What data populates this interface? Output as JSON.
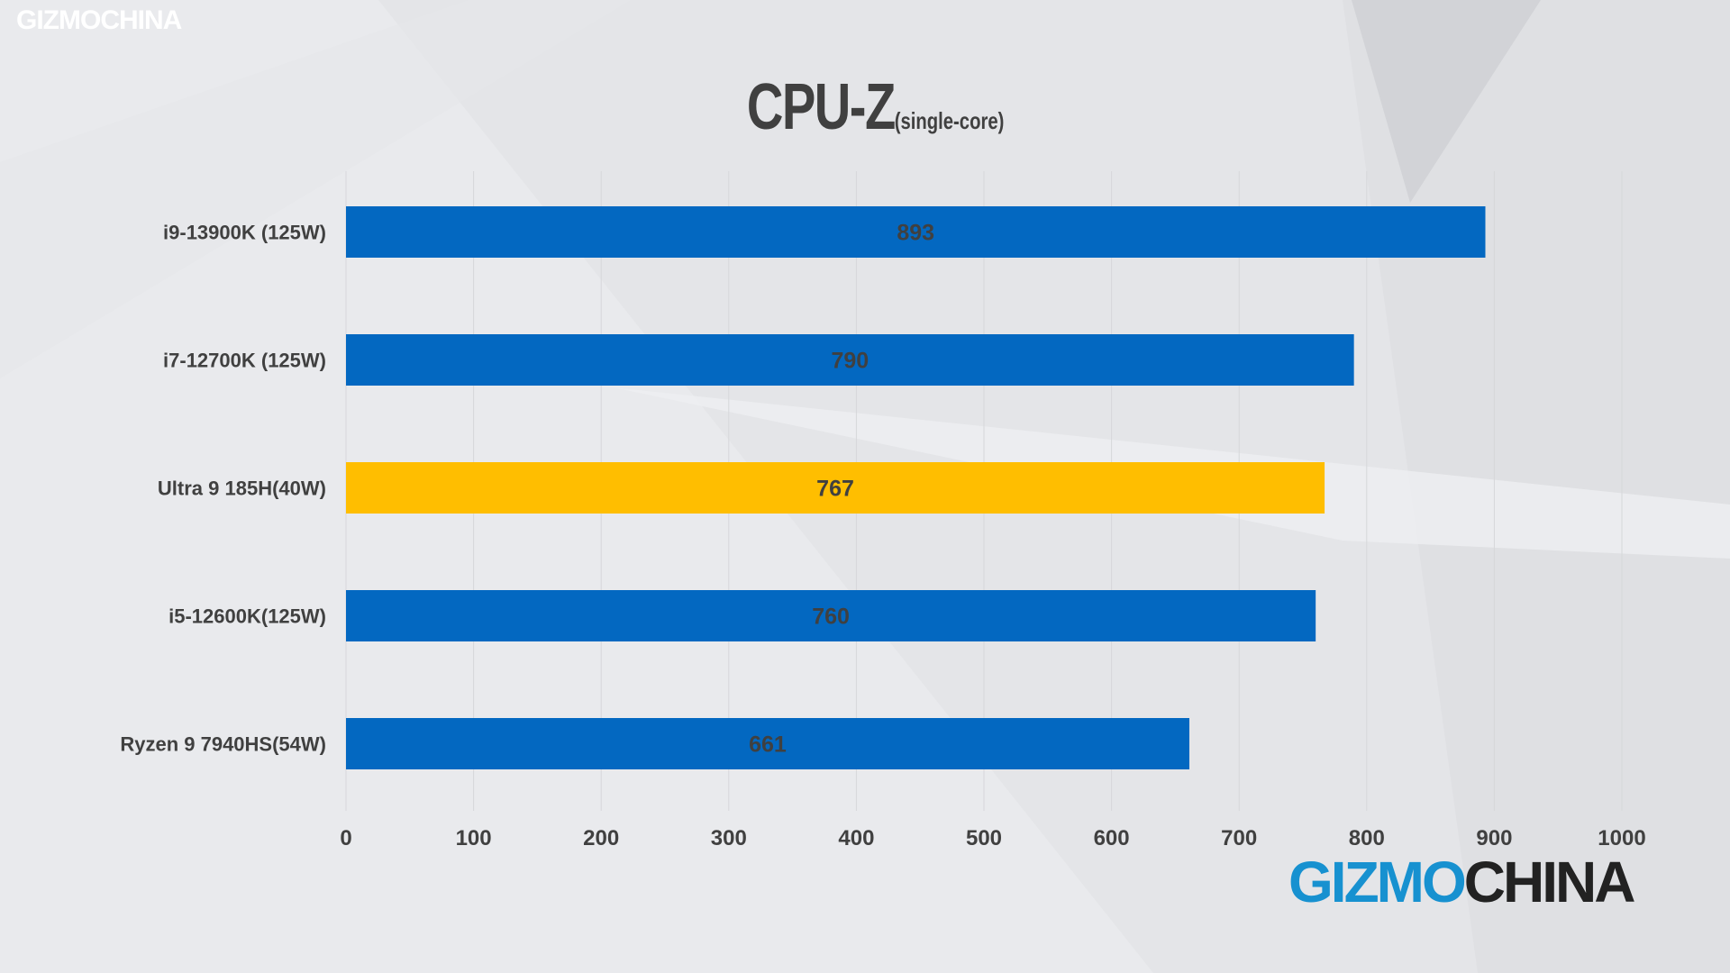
{
  "watermark": "GIZMOCHINA",
  "logo": {
    "part1": "GIZMO",
    "part2": "CHINA",
    "color1": "#1791d0",
    "color2": "#222222"
  },
  "chart_data": {
    "type": "bar",
    "orientation": "horizontal",
    "title": "CPU-Z",
    "subtitle": "(single-core)",
    "categories": [
      "i9-13900K (125W)",
      "i7-12700K (125W)",
      "Ultra 9 185H(40W)",
      "i5-12600K(125W)",
      "Ryzen 9 7940HS(54W)"
    ],
    "values": [
      893,
      790,
      767,
      760,
      661
    ],
    "highlight_index": 2,
    "xlim": [
      0,
      1000
    ],
    "xticks": [
      0,
      100,
      200,
      300,
      400,
      500,
      600,
      700,
      800,
      900,
      1000
    ],
    "xlabel": "",
    "ylabel": "",
    "grid": true,
    "legend": "none",
    "colors": {
      "bar": "#0368c1",
      "highlight": "#ffbe00",
      "text": "#404040",
      "grid": "#d6d7da"
    }
  }
}
